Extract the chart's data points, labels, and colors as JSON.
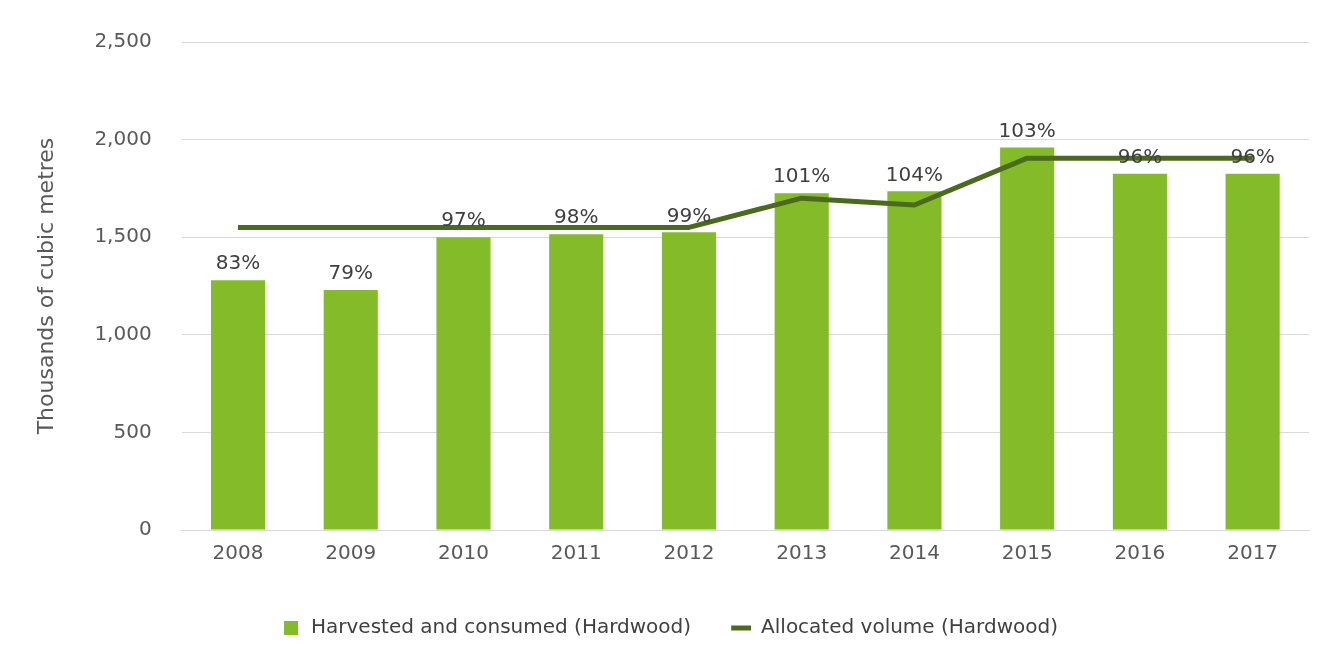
{
  "chart_data": {
    "type": "bar",
    "ylabel": "Thousands of cubic metres",
    "categories": [
      "2008",
      "2009",
      "2010",
      "2011",
      "2012",
      "2013",
      "2014",
      "2015",
      "2016",
      "2017"
    ],
    "series": [
      {
        "name": "Harvested and consumed (Hardwood)",
        "color": "#84bb28",
        "values": [
          1280,
          1230,
          1500,
          1515,
          1525,
          1725,
          1735,
          1960,
          1825,
          1825
        ]
      },
      {
        "name": "Allocated volume (Hardwood)",
        "type": "line",
        "color": "#4a6a1c",
        "marker": "none",
        "values": [
          1550,
          1550,
          1550,
          1550,
          1550,
          1700,
          1665,
          1905,
          1905,
          1905
        ]
      }
    ],
    "ylim": [
      0,
      2500
    ],
    "yticks": [
      0,
      500,
      {
        "value": 1000,
        "label": "1,000"
      },
      {
        "value": 1500,
        "label": "1,500"
      },
      {
        "value": 2000,
        "label": "2,000"
      },
      {
        "value": 2500,
        "label": "2,500"
      }
    ],
    "annotations": [
      {
        "text": "83%",
        "x": "2008",
        "y": 1280
      },
      {
        "text": "79%",
        "x": "2009",
        "y": 1230
      },
      {
        "text": "97%",
        "x": "2010",
        "y": 1500
      },
      {
        "text": "98%",
        "x": "2011",
        "y": 1515
      },
      {
        "text": "99%",
        "x": "2012",
        "y": 1525
      },
      {
        "text": "101%",
        "x": "2013",
        "y": 1725
      },
      {
        "text": "104%",
        "x": "2014",
        "y": 1735
      },
      {
        "text": "103%",
        "x": "2015",
        "y": 1960
      },
      {
        "text": "96%",
        "x": "2016",
        "y": 1825
      },
      {
        "text": "96%",
        "x": "2017",
        "y": 1825
      }
    ],
    "grid": "y",
    "legend": "bottom"
  }
}
